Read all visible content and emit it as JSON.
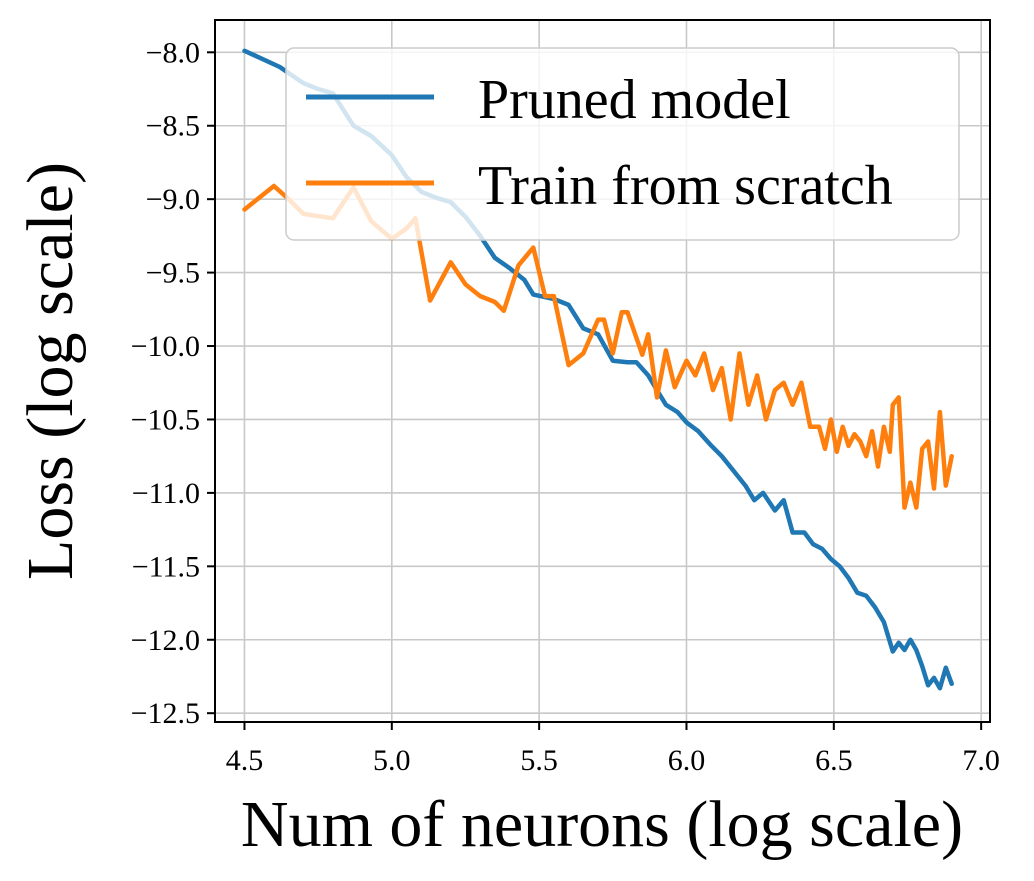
{
  "chart_data": {
    "type": "line",
    "title": "",
    "xlabel": "Num of neurons (log scale)",
    "ylabel": "Loss (log scale)",
    "xlim": [
      4.4,
      7.03
    ],
    "ylim": [
      -12.56,
      -7.78
    ],
    "xticks": [
      4.5,
      5.0,
      5.5,
      6.0,
      6.5,
      7.0
    ],
    "xtick_labels": [
      "4.5",
      "5.0",
      "5.5",
      "6.0",
      "6.5",
      "7.0"
    ],
    "yticks": [
      -8.0,
      -8.5,
      -9.0,
      -9.5,
      -10.0,
      -10.5,
      -11.0,
      -11.5,
      -12.0,
      -12.5
    ],
    "ytick_labels": [
      "−8.0",
      "−8.5",
      "−9.0",
      "−9.5",
      "−10.0",
      "−10.5",
      "−11.0",
      "−11.5",
      "−12.0",
      "−12.5"
    ],
    "grid": true,
    "legend_position": "top-right",
    "series": [
      {
        "name": "Pruned model",
        "color": "#1f77b4",
        "points": [
          [
            4.5,
            -7.99
          ],
          [
            4.62,
            -8.1
          ],
          [
            4.7,
            -8.21
          ],
          [
            4.75,
            -8.25
          ],
          [
            4.8,
            -8.28
          ],
          [
            4.87,
            -8.5
          ],
          [
            4.93,
            -8.57
          ],
          [
            5.0,
            -8.7
          ],
          [
            5.05,
            -8.85
          ],
          [
            5.1,
            -8.95
          ],
          [
            5.15,
            -8.99
          ],
          [
            5.2,
            -9.02
          ],
          [
            5.25,
            -9.12
          ],
          [
            5.3,
            -9.25
          ],
          [
            5.35,
            -9.4
          ],
          [
            5.4,
            -9.47
          ],
          [
            5.45,
            -9.55
          ],
          [
            5.48,
            -9.65
          ],
          [
            5.55,
            -9.68
          ],
          [
            5.6,
            -9.72
          ],
          [
            5.65,
            -9.88
          ],
          [
            5.7,
            -9.92
          ],
          [
            5.75,
            -10.1
          ],
          [
            5.8,
            -10.11
          ],
          [
            5.83,
            -10.11
          ],
          [
            5.87,
            -10.2
          ],
          [
            5.9,
            -10.3
          ],
          [
            5.93,
            -10.4
          ],
          [
            5.97,
            -10.45
          ],
          [
            6.0,
            -10.52
          ],
          [
            6.04,
            -10.58
          ],
          [
            6.08,
            -10.67
          ],
          [
            6.12,
            -10.75
          ],
          [
            6.16,
            -10.85
          ],
          [
            6.2,
            -10.95
          ],
          [
            6.23,
            -11.05
          ],
          [
            6.26,
            -11.0
          ],
          [
            6.3,
            -11.12
          ],
          [
            6.33,
            -11.05
          ],
          [
            6.36,
            -11.27
          ],
          [
            6.4,
            -11.27
          ],
          [
            6.43,
            -11.35
          ],
          [
            6.46,
            -11.38
          ],
          [
            6.49,
            -11.45
          ],
          [
            6.52,
            -11.5
          ],
          [
            6.55,
            -11.58
          ],
          [
            6.58,
            -11.68
          ],
          [
            6.61,
            -11.7
          ],
          [
            6.64,
            -11.78
          ],
          [
            6.67,
            -11.88
          ],
          [
            6.7,
            -12.08
          ],
          [
            6.72,
            -12.02
          ],
          [
            6.74,
            -12.07
          ],
          [
            6.76,
            -12.0
          ],
          [
            6.78,
            -12.07
          ],
          [
            6.8,
            -12.18
          ],
          [
            6.82,
            -12.31
          ],
          [
            6.84,
            -12.26
          ],
          [
            6.86,
            -12.33
          ],
          [
            6.88,
            -12.19
          ],
          [
            6.9,
            -12.3
          ]
        ]
      },
      {
        "name": "Train from scratch",
        "color": "#ff7f0e",
        "points": [
          [
            4.5,
            -9.07
          ],
          [
            4.6,
            -8.91
          ],
          [
            4.65,
            -9.0
          ],
          [
            4.7,
            -9.1
          ],
          [
            4.8,
            -9.13
          ],
          [
            4.87,
            -8.92
          ],
          [
            4.93,
            -9.15
          ],
          [
            5.0,
            -9.27
          ],
          [
            5.05,
            -9.2
          ],
          [
            5.08,
            -9.13
          ],
          [
            5.13,
            -9.69
          ],
          [
            5.2,
            -9.43
          ],
          [
            5.25,
            -9.58
          ],
          [
            5.3,
            -9.66
          ],
          [
            5.35,
            -9.7
          ],
          [
            5.38,
            -9.76
          ],
          [
            5.43,
            -9.45
          ],
          [
            5.48,
            -9.33
          ],
          [
            5.52,
            -9.66
          ],
          [
            5.55,
            -9.66
          ],
          [
            5.6,
            -10.13
          ],
          [
            5.65,
            -10.05
          ],
          [
            5.7,
            -9.82
          ],
          [
            5.72,
            -9.82
          ],
          [
            5.75,
            -10.05
          ],
          [
            5.78,
            -9.77
          ],
          [
            5.8,
            -9.77
          ],
          [
            5.85,
            -10.06
          ],
          [
            5.87,
            -9.92
          ],
          [
            5.9,
            -10.35
          ],
          [
            5.93,
            -10.03
          ],
          [
            5.96,
            -10.28
          ],
          [
            6.0,
            -10.1
          ],
          [
            6.03,
            -10.2
          ],
          [
            6.06,
            -10.05
          ],
          [
            6.09,
            -10.3
          ],
          [
            6.12,
            -10.15
          ],
          [
            6.15,
            -10.5
          ],
          [
            6.18,
            -10.05
          ],
          [
            6.21,
            -10.4
          ],
          [
            6.24,
            -10.2
          ],
          [
            6.27,
            -10.5
          ],
          [
            6.3,
            -10.3
          ],
          [
            6.33,
            -10.25
          ],
          [
            6.36,
            -10.4
          ],
          [
            6.39,
            -10.25
          ],
          [
            6.42,
            -10.55
          ],
          [
            6.45,
            -10.55
          ],
          [
            6.47,
            -10.7
          ],
          [
            6.49,
            -10.5
          ],
          [
            6.51,
            -10.72
          ],
          [
            6.53,
            -10.55
          ],
          [
            6.55,
            -10.68
          ],
          [
            6.57,
            -10.6
          ],
          [
            6.59,
            -10.65
          ],
          [
            6.61,
            -10.75
          ],
          [
            6.63,
            -10.58
          ],
          [
            6.65,
            -10.82
          ],
          [
            6.67,
            -10.55
          ],
          [
            6.69,
            -10.72
          ],
          [
            6.7,
            -10.4
          ],
          [
            6.72,
            -10.35
          ],
          [
            6.74,
            -11.1
          ],
          [
            6.76,
            -10.93
          ],
          [
            6.78,
            -11.1
          ],
          [
            6.8,
            -10.7
          ],
          [
            6.82,
            -10.65
          ],
          [
            6.84,
            -10.97
          ],
          [
            6.86,
            -10.45
          ],
          [
            6.88,
            -10.95
          ],
          [
            6.9,
            -10.75
          ]
        ]
      }
    ]
  }
}
